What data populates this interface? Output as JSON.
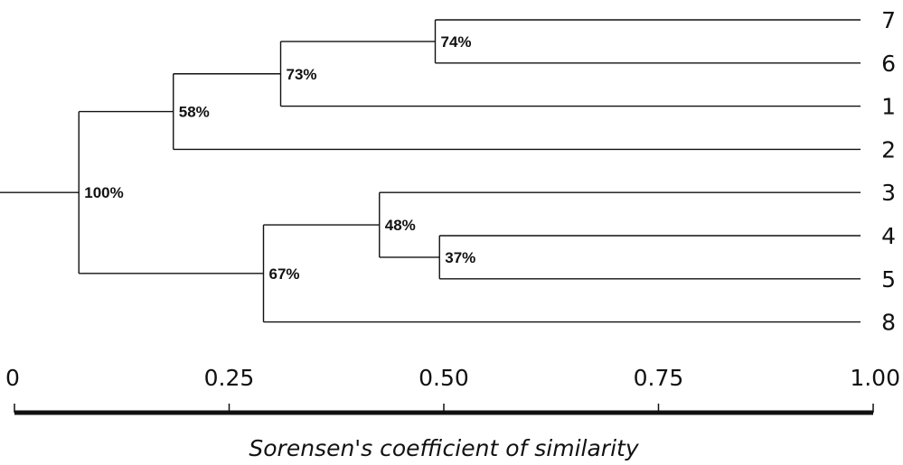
{
  "chart_data": {
    "type": "dendrogram",
    "xaxis": {
      "title": "Sorensen's coefficient of similarity",
      "range": [
        0,
        1
      ],
      "ticks": [
        {
          "value": 0,
          "label": "0"
        },
        {
          "value": 0.25,
          "label": "0.25"
        },
        {
          "value": 0.5,
          "label": "0.50"
        },
        {
          "value": 0.75,
          "label": "0.75"
        },
        {
          "value": 1,
          "label": "1.00"
        }
      ]
    },
    "leaves": [
      {
        "id": "7",
        "label": "7"
      },
      {
        "id": "6",
        "label": "6"
      },
      {
        "id": "1",
        "label": "1"
      },
      {
        "id": "2",
        "label": "2"
      },
      {
        "id": "3",
        "label": "3"
      },
      {
        "id": "4",
        "label": "4"
      },
      {
        "id": "5",
        "label": "5"
      },
      {
        "id": "8",
        "label": "8"
      }
    ],
    "clusters": [
      {
        "id": "c74",
        "label": "74%",
        "similarity": 0.49,
        "children": [
          "7",
          "6"
        ]
      },
      {
        "id": "c73",
        "label": "73%",
        "similarity": 0.31,
        "children": [
          "c74",
          "1"
        ]
      },
      {
        "id": "c58",
        "label": "58%",
        "similarity": 0.185,
        "children": [
          "c73",
          "2"
        ]
      },
      {
        "id": "c37",
        "label": "37%",
        "similarity": 0.495,
        "children": [
          "4",
          "5"
        ]
      },
      {
        "id": "c48",
        "label": "48%",
        "similarity": 0.425,
        "children": [
          "3",
          "c37"
        ]
      },
      {
        "id": "c67",
        "label": "67%",
        "similarity": 0.29,
        "children": [
          "c48",
          "8"
        ]
      },
      {
        "id": "c100",
        "label": "100%",
        "similarity": 0.075,
        "children": [
          "c58",
          "c67"
        ]
      }
    ],
    "root": "c100"
  }
}
